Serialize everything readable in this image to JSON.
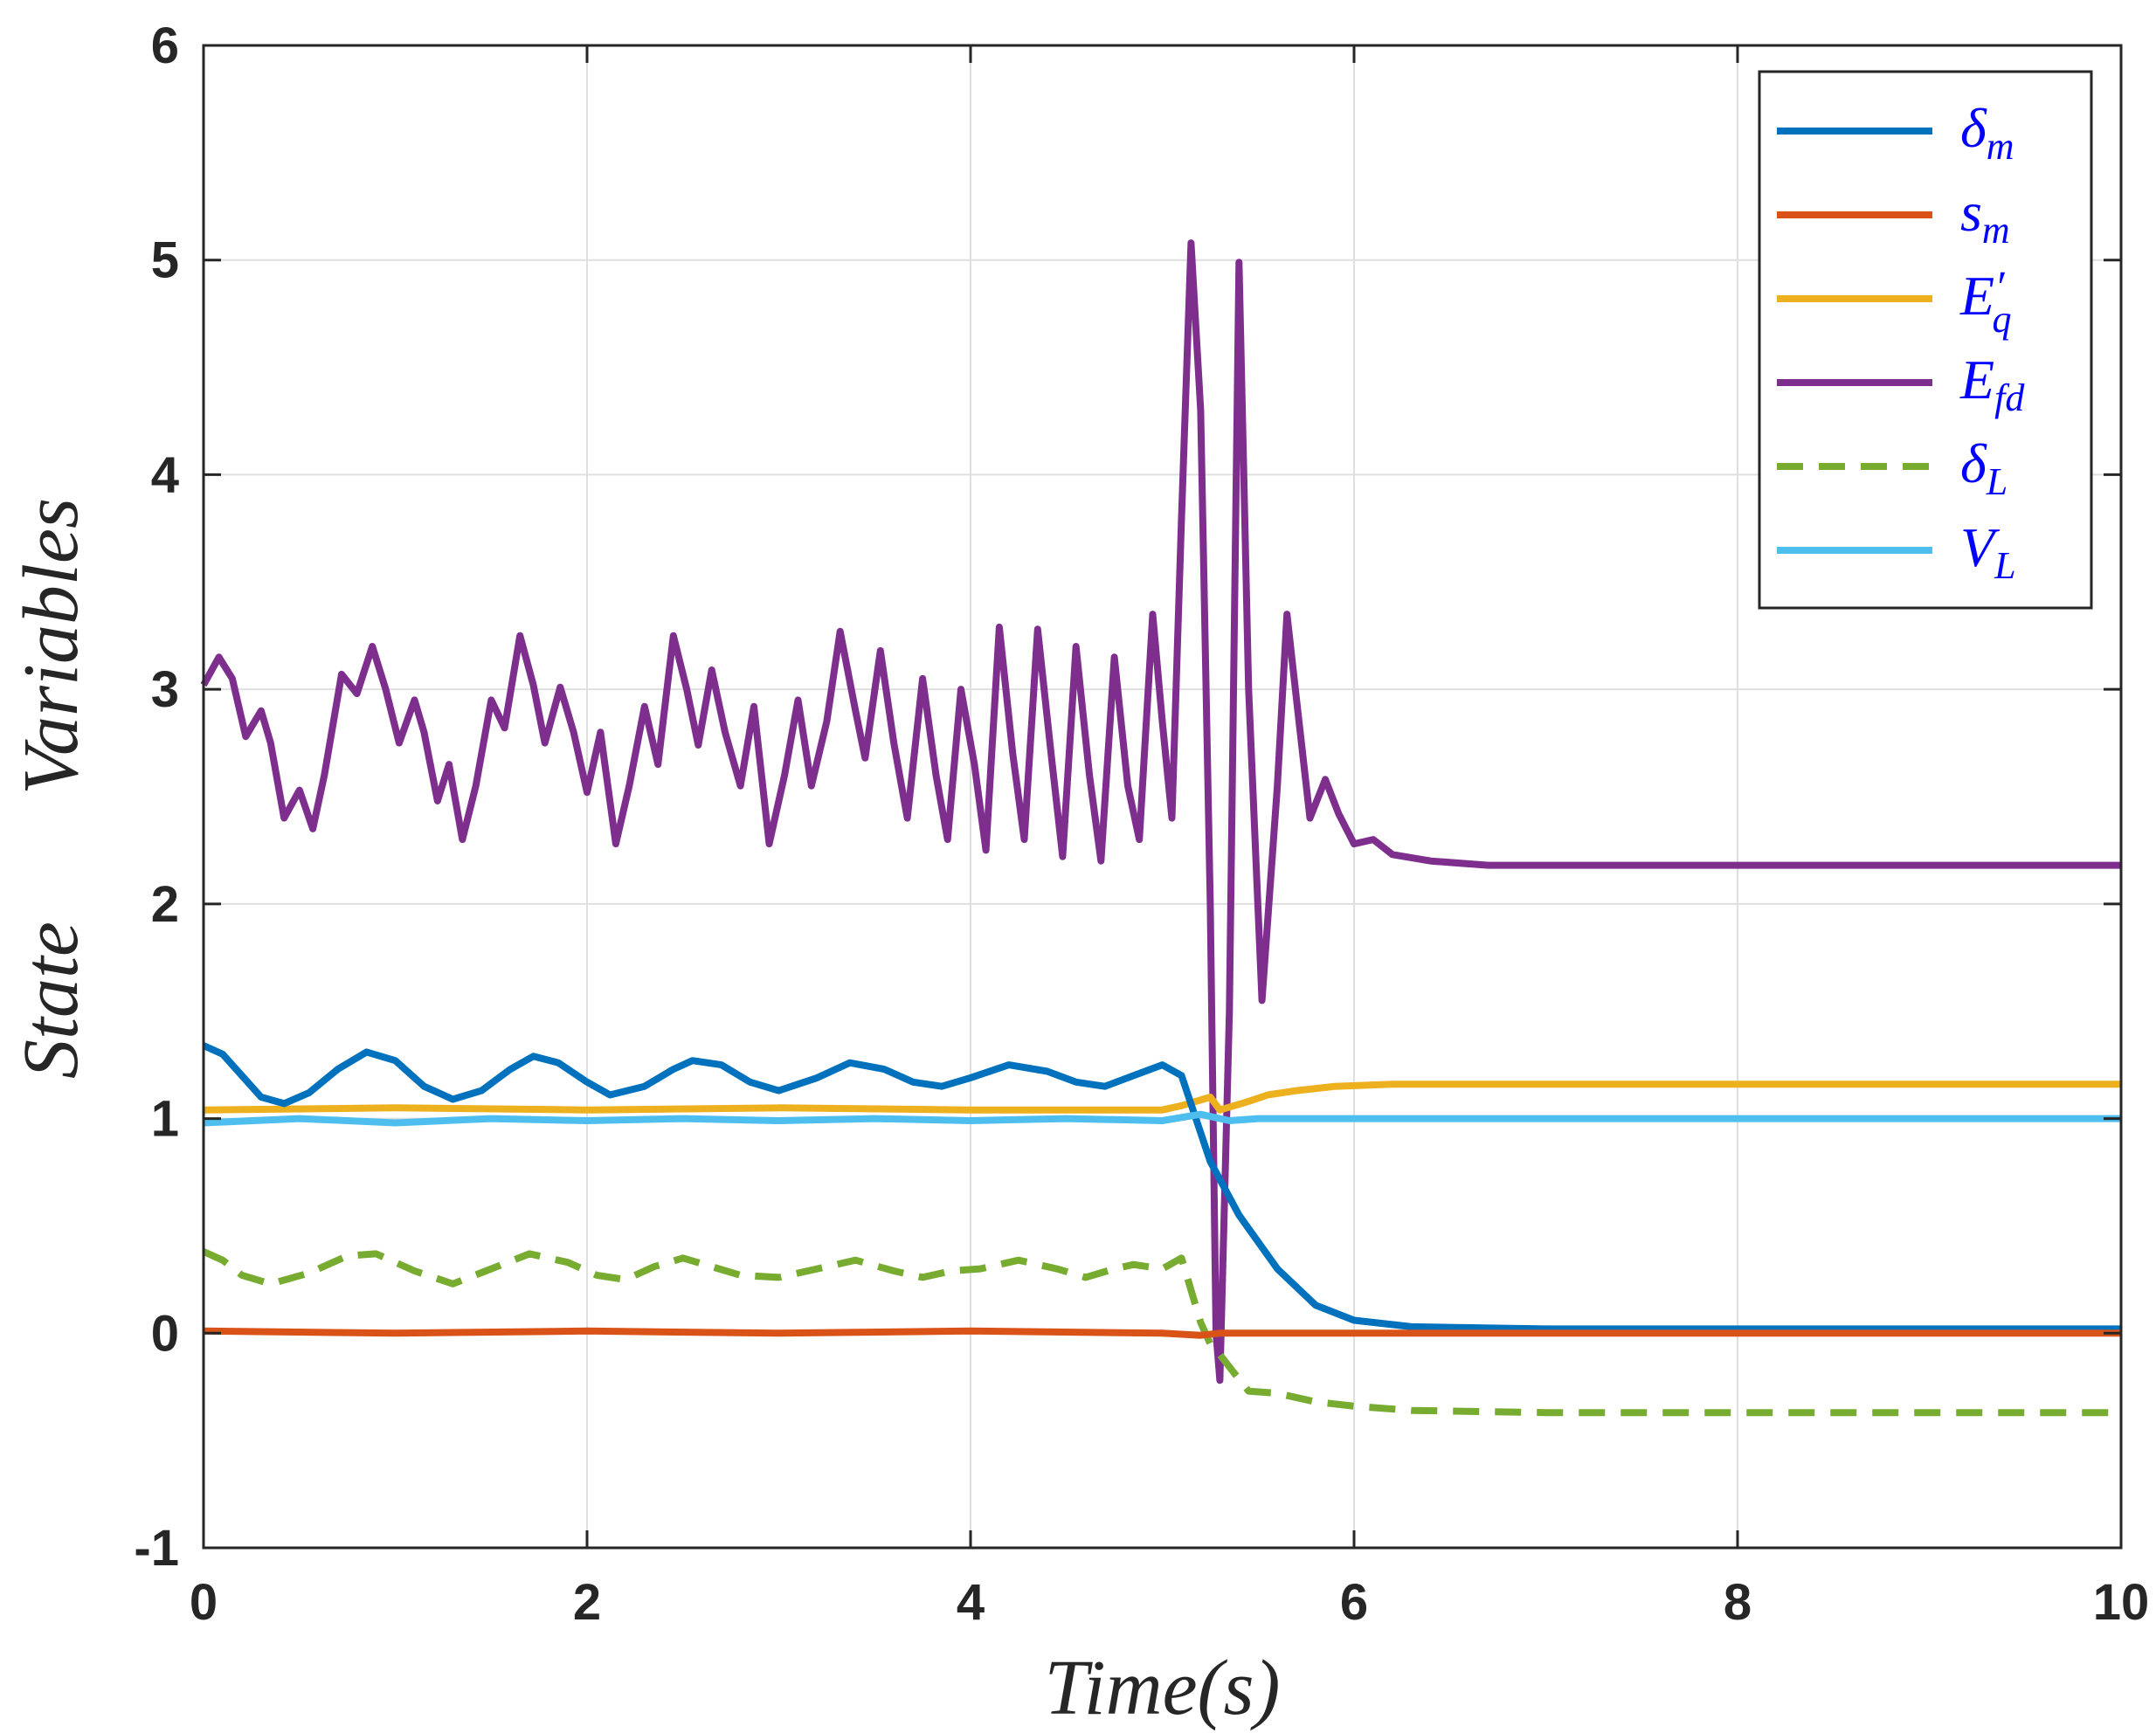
{
  "chart_data": {
    "type": "line",
    "xlabel": "Time(s)",
    "ylabel_parts": [
      "State",
      "Variables"
    ],
    "xlim": [
      0,
      10
    ],
    "ylim": [
      -1,
      6
    ],
    "x_ticks": [
      0,
      2,
      4,
      6,
      8,
      10
    ],
    "x_tick_labels": [
      "0",
      "2",
      "4",
      "6",
      "8",
      "10"
    ],
    "y_ticks": [
      -1,
      0,
      1,
      2,
      3,
      4,
      5,
      6
    ],
    "y_tick_labels": [
      "-1",
      "0",
      "1",
      "2",
      "3",
      "4",
      "5",
      "6"
    ],
    "grid": true,
    "legend_position": "top-right",
    "series": [
      {
        "name": "δm",
        "legend_main": "δ",
        "legend_sub": "m",
        "legend_prime": "",
        "color": "#0072bd",
        "dash": "solid",
        "points": [
          [
            0,
            1.34
          ],
          [
            0.1,
            1.3
          ],
          [
            0.2,
            1.2
          ],
          [
            0.3,
            1.1
          ],
          [
            0.42,
            1.07
          ],
          [
            0.55,
            1.12
          ],
          [
            0.7,
            1.23
          ],
          [
            0.85,
            1.31
          ],
          [
            1.0,
            1.27
          ],
          [
            1.15,
            1.15
          ],
          [
            1.3,
            1.09
          ],
          [
            1.45,
            1.13
          ],
          [
            1.6,
            1.23
          ],
          [
            1.72,
            1.29
          ],
          [
            1.85,
            1.26
          ],
          [
            2.0,
            1.17
          ],
          [
            2.12,
            1.11
          ],
          [
            2.3,
            1.15
          ],
          [
            2.45,
            1.23
          ],
          [
            2.55,
            1.27
          ],
          [
            2.7,
            1.25
          ],
          [
            2.85,
            1.17
          ],
          [
            3.0,
            1.13
          ],
          [
            3.2,
            1.19
          ],
          [
            3.37,
            1.26
          ],
          [
            3.55,
            1.23
          ],
          [
            3.7,
            1.17
          ],
          [
            3.85,
            1.15
          ],
          [
            4.0,
            1.19
          ],
          [
            4.2,
            1.25
          ],
          [
            4.4,
            1.22
          ],
          [
            4.55,
            1.17
          ],
          [
            4.7,
            1.15
          ],
          [
            4.85,
            1.2
          ],
          [
            5.0,
            1.25
          ],
          [
            5.1,
            1.2
          ],
          [
            5.25,
            0.8
          ],
          [
            5.4,
            0.55
          ],
          [
            5.6,
            0.3
          ],
          [
            5.8,
            0.13
          ],
          [
            6.0,
            0.06
          ],
          [
            6.3,
            0.03
          ],
          [
            7.0,
            0.02
          ],
          [
            10,
            0.02
          ]
        ]
      },
      {
        "name": "sm",
        "legend_main": "s",
        "legend_sub": "m",
        "legend_prime": "",
        "color": "#d95319",
        "dash": "solid",
        "points": [
          [
            0,
            0.01
          ],
          [
            1,
            0.0
          ],
          [
            2,
            0.01
          ],
          [
            3,
            0.0
          ],
          [
            4,
            0.01
          ],
          [
            5,
            0.0
          ],
          [
            5.2,
            -0.01
          ],
          [
            5.3,
            0.0
          ],
          [
            6,
            0.0
          ],
          [
            10,
            0.0
          ]
        ]
      },
      {
        "name": "E'q",
        "legend_main": "E",
        "legend_sub": "q",
        "legend_prime": "′",
        "color": "#edb120",
        "dash": "solid",
        "points": [
          [
            0,
            1.04
          ],
          [
            1,
            1.05
          ],
          [
            2,
            1.04
          ],
          [
            3,
            1.05
          ],
          [
            4,
            1.04
          ],
          [
            5,
            1.04
          ],
          [
            5.1,
            1.06
          ],
          [
            5.25,
            1.1
          ],
          [
            5.3,
            1.04
          ],
          [
            5.45,
            1.08
          ],
          [
            5.55,
            1.11
          ],
          [
            5.7,
            1.13
          ],
          [
            5.9,
            1.15
          ],
          [
            6.2,
            1.16
          ],
          [
            7,
            1.16
          ],
          [
            10,
            1.16
          ]
        ]
      },
      {
        "name": "Efd",
        "legend_main": "E",
        "legend_sub": "fd",
        "legend_prime": "",
        "color": "#7e2f8e",
        "dash": "solid",
        "points": [
          [
            0,
            3.02
          ],
          [
            0.08,
            3.15
          ],
          [
            0.15,
            3.05
          ],
          [
            0.22,
            2.78
          ],
          [
            0.3,
            2.9
          ],
          [
            0.35,
            2.75
          ],
          [
            0.42,
            2.4
          ],
          [
            0.5,
            2.53
          ],
          [
            0.57,
            2.35
          ],
          [
            0.63,
            2.6
          ],
          [
            0.72,
            3.07
          ],
          [
            0.8,
            2.98
          ],
          [
            0.88,
            3.2
          ],
          [
            0.95,
            3.0
          ],
          [
            1.02,
            2.75
          ],
          [
            1.1,
            2.95
          ],
          [
            1.15,
            2.8
          ],
          [
            1.22,
            2.48
          ],
          [
            1.28,
            2.65
          ],
          [
            1.35,
            2.3
          ],
          [
            1.42,
            2.55
          ],
          [
            1.5,
            2.95
          ],
          [
            1.57,
            2.82
          ],
          [
            1.65,
            3.25
          ],
          [
            1.72,
            3.02
          ],
          [
            1.78,
            2.75
          ],
          [
            1.86,
            3.01
          ],
          [
            1.93,
            2.8
          ],
          [
            2.0,
            2.52
          ],
          [
            2.07,
            2.8
          ],
          [
            2.15,
            2.28
          ],
          [
            2.22,
            2.55
          ],
          [
            2.3,
            2.92
          ],
          [
            2.37,
            2.65
          ],
          [
            2.45,
            3.25
          ],
          [
            2.52,
            3.0
          ],
          [
            2.58,
            2.74
          ],
          [
            2.65,
            3.09
          ],
          [
            2.72,
            2.8
          ],
          [
            2.8,
            2.55
          ],
          [
            2.87,
            2.92
          ],
          [
            2.95,
            2.28
          ],
          [
            3.03,
            2.6
          ],
          [
            3.1,
            2.95
          ],
          [
            3.17,
            2.55
          ],
          [
            3.25,
            2.85
          ],
          [
            3.32,
            3.27
          ],
          [
            3.4,
            2.9
          ],
          [
            3.45,
            2.68
          ],
          [
            3.53,
            3.18
          ],
          [
            3.6,
            2.75
          ],
          [
            3.67,
            2.4
          ],
          [
            3.75,
            3.05
          ],
          [
            3.82,
            2.6
          ],
          [
            3.88,
            2.3
          ],
          [
            3.95,
            3.0
          ],
          [
            4.02,
            2.65
          ],
          [
            4.08,
            2.25
          ],
          [
            4.15,
            3.29
          ],
          [
            4.22,
            2.7
          ],
          [
            4.28,
            2.3
          ],
          [
            4.35,
            3.28
          ],
          [
            4.42,
            2.7
          ],
          [
            4.48,
            2.22
          ],
          [
            4.55,
            3.2
          ],
          [
            4.62,
            2.6
          ],
          [
            4.68,
            2.2
          ],
          [
            4.75,
            3.15
          ],
          [
            4.82,
            2.55
          ],
          [
            4.88,
            2.3
          ],
          [
            4.95,
            3.35
          ],
          [
            5.0,
            2.85
          ],
          [
            5.05,
            2.4
          ],
          [
            5.1,
            3.8
          ],
          [
            5.15,
            5.08
          ],
          [
            5.2,
            4.3
          ],
          [
            5.25,
            2.0
          ],
          [
            5.28,
            0.0
          ],
          [
            5.3,
            -0.22
          ],
          [
            5.35,
            1.5
          ],
          [
            5.4,
            4.99
          ],
          [
            5.45,
            3.0
          ],
          [
            5.52,
            1.55
          ],
          [
            5.6,
            2.55
          ],
          [
            5.65,
            3.35
          ],
          [
            5.7,
            2.95
          ],
          [
            5.77,
            2.4
          ],
          [
            5.85,
            2.58
          ],
          [
            5.92,
            2.42
          ],
          [
            6.0,
            2.28
          ],
          [
            6.1,
            2.3
          ],
          [
            6.2,
            2.23
          ],
          [
            6.4,
            2.2
          ],
          [
            6.7,
            2.18
          ],
          [
            7.5,
            2.18
          ],
          [
            10,
            2.18
          ]
        ]
      },
      {
        "name": "δL",
        "legend_main": "δ",
        "legend_sub": "L",
        "legend_prime": "",
        "color": "#77ac30",
        "dash": "dashed",
        "points": [
          [
            0,
            0.38
          ],
          [
            0.1,
            0.34
          ],
          [
            0.2,
            0.27
          ],
          [
            0.35,
            0.23
          ],
          [
            0.55,
            0.28
          ],
          [
            0.75,
            0.36
          ],
          [
            0.9,
            0.37
          ],
          [
            1.1,
            0.29
          ],
          [
            1.3,
            0.23
          ],
          [
            1.5,
            0.3
          ],
          [
            1.7,
            0.37
          ],
          [
            1.9,
            0.33
          ],
          [
            2.05,
            0.27
          ],
          [
            2.2,
            0.25
          ],
          [
            2.35,
            0.31
          ],
          [
            2.5,
            0.35
          ],
          [
            2.65,
            0.31
          ],
          [
            2.8,
            0.27
          ],
          [
            3.0,
            0.26
          ],
          [
            3.2,
            0.3
          ],
          [
            3.4,
            0.34
          ],
          [
            3.6,
            0.29
          ],
          [
            3.75,
            0.26
          ],
          [
            3.9,
            0.29
          ],
          [
            4.05,
            0.3
          ],
          [
            4.25,
            0.34
          ],
          [
            4.45,
            0.3
          ],
          [
            4.6,
            0.26
          ],
          [
            4.75,
            0.3
          ],
          [
            4.85,
            0.32
          ],
          [
            5.0,
            0.3
          ],
          [
            5.1,
            0.35
          ],
          [
            5.2,
            0.05
          ],
          [
            5.25,
            -0.05
          ],
          [
            5.3,
            -0.1
          ],
          [
            5.37,
            -0.18
          ],
          [
            5.45,
            -0.27
          ],
          [
            5.6,
            -0.28
          ],
          [
            5.8,
            -0.32
          ],
          [
            6.0,
            -0.34
          ],
          [
            6.3,
            -0.36
          ],
          [
            7.0,
            -0.37
          ],
          [
            10,
            -0.37
          ]
        ]
      },
      {
        "name": "VL",
        "legend_main": "V",
        "legend_sub": "L",
        "legend_prime": "",
        "color": "#4dbeee",
        "dash": "solid",
        "points": [
          [
            0,
            0.98
          ],
          [
            0.5,
            1.0
          ],
          [
            1.0,
            0.98
          ],
          [
            1.5,
            1.0
          ],
          [
            2.0,
            0.99
          ],
          [
            2.5,
            1.0
          ],
          [
            3.0,
            0.99
          ],
          [
            3.5,
            1.0
          ],
          [
            4.0,
            0.99
          ],
          [
            4.5,
            1.0
          ],
          [
            5.0,
            0.99
          ],
          [
            5.2,
            1.02
          ],
          [
            5.35,
            0.99
          ],
          [
            5.5,
            1.0
          ],
          [
            6.0,
            1.0
          ],
          [
            10,
            1.0
          ]
        ]
      }
    ]
  }
}
